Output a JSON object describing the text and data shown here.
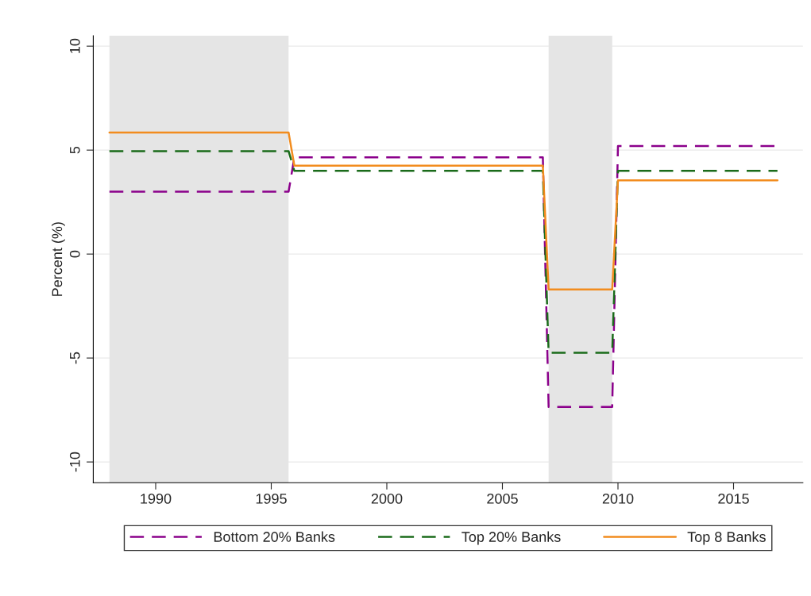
{
  "chart_data": {
    "type": "line",
    "ylabel": "Percent (%)",
    "x": [
      1988,
      1995.75,
      1996,
      2006.75,
      2007,
      2009.75,
      2010,
      2016.9
    ],
    "series": [
      {
        "name": "Bottom 20% Banks",
        "color": "#8b008b",
        "line_style": "dashed",
        "values": [
          3.0,
          3.0,
          4.65,
          4.65,
          -7.35,
          -7.35,
          5.2,
          5.2
        ]
      },
      {
        "name": "Top 20% Banks",
        "color": "#1a6b1a",
        "line_style": "dashed",
        "values": [
          4.95,
          4.95,
          4.0,
          4.0,
          -4.75,
          -4.75,
          4.0,
          4.0
        ]
      },
      {
        "name": "Top 8 Banks",
        "color": "#f28c1e",
        "line_style": "solid",
        "values": [
          5.85,
          5.85,
          4.25,
          4.25,
          -1.7,
          -1.7,
          3.55,
          3.55
        ]
      }
    ],
    "xlim": [
      1987.3,
      2018
    ],
    "ylim": [
      -11,
      10.5
    ],
    "xticks": [
      1990,
      1995,
      2000,
      2005,
      2010,
      2015
    ],
    "yticks": [
      -10,
      -5,
      0,
      5,
      10
    ],
    "bands": [
      {
        "axis": "x",
        "from": 1988,
        "to": 1995.75,
        "color": "#e5e5e5"
      },
      {
        "axis": "x",
        "from": 2007,
        "to": 2009.75,
        "color": "#e5e5e5"
      }
    ],
    "grid": "y",
    "legend": "bottom"
  }
}
